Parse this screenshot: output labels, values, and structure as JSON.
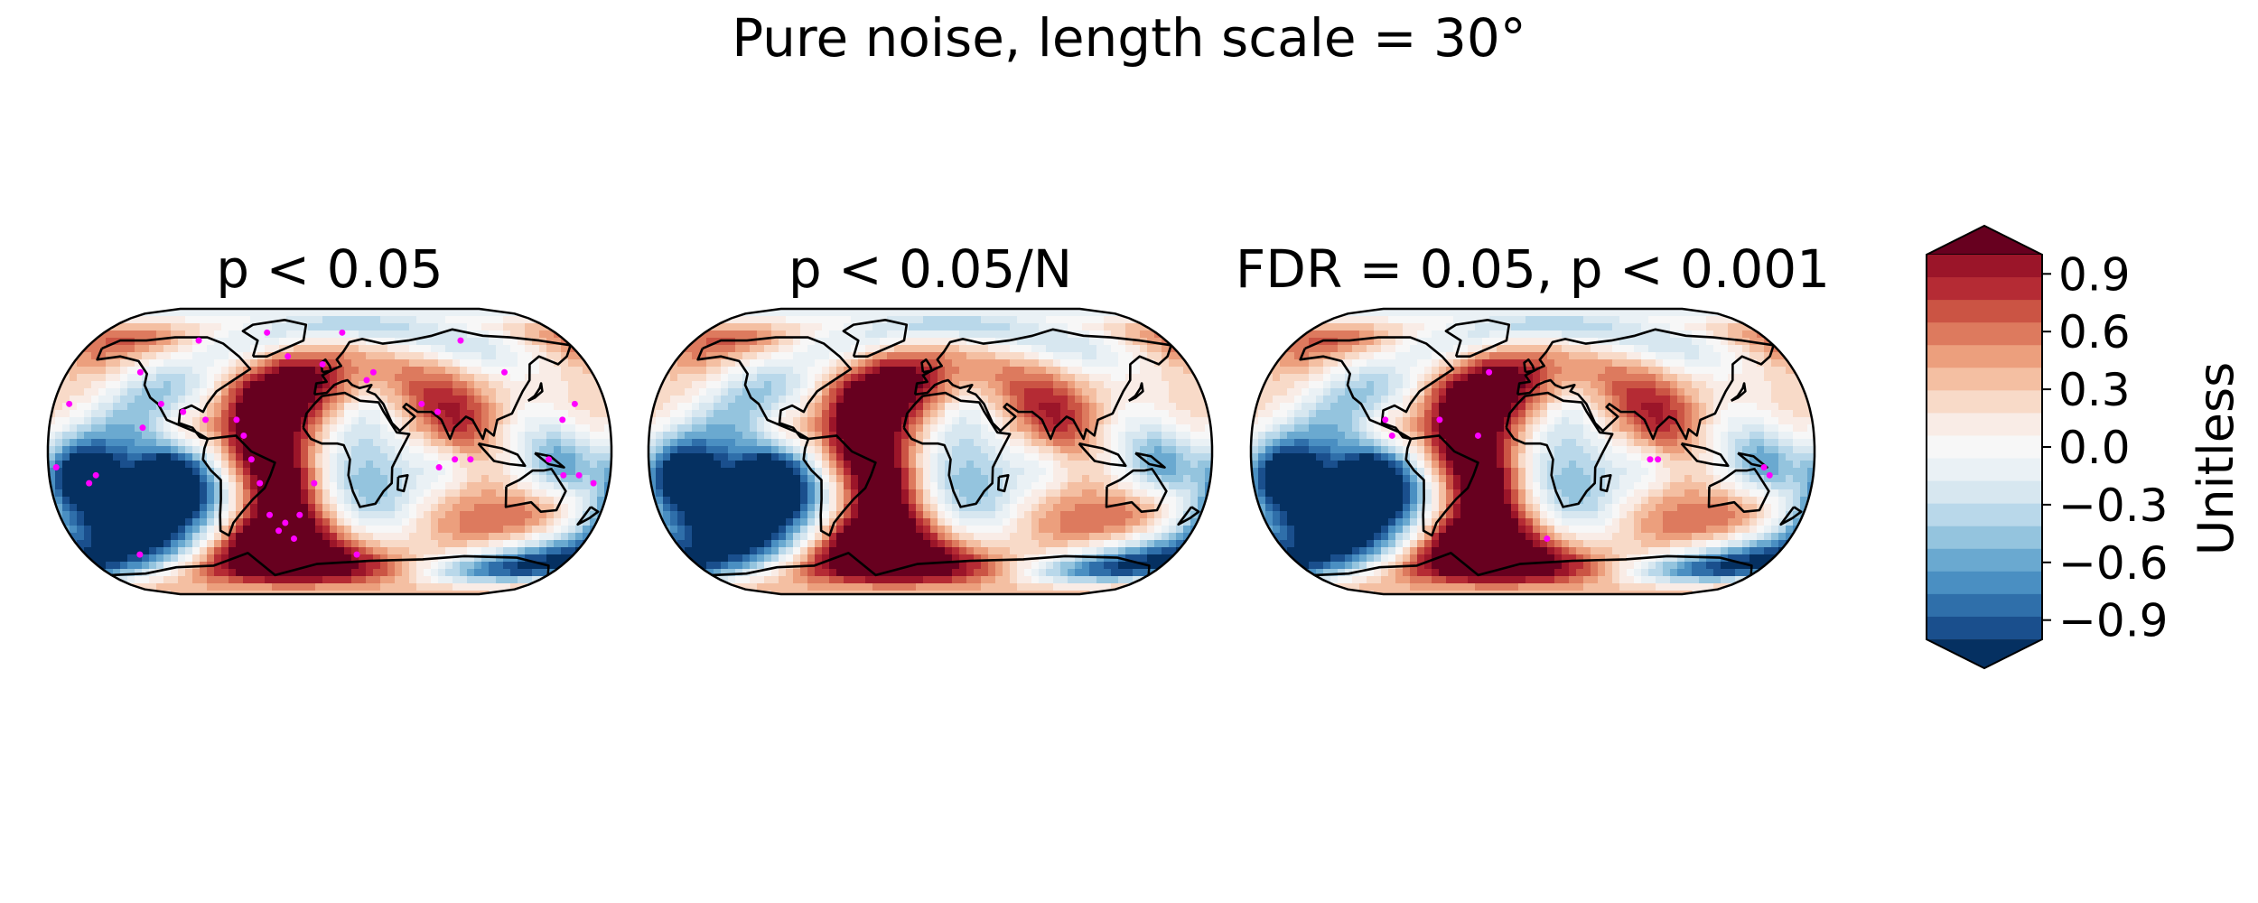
{
  "figure": {
    "title": "Pure noise, length scale = 30°"
  },
  "panels": [
    {
      "title": "p < 0.05",
      "seed": 3,
      "dot_density": "many"
    },
    {
      "title": "p < 0.05/N",
      "seed": 3,
      "dot_density": "none"
    },
    {
      "title": "FDR = 0.05, p < 0.001",
      "seed": 3,
      "dot_density": "few"
    }
  ],
  "colorbar": {
    "label": "Unitless",
    "tick_labels": [
      "0.9",
      "0.6",
      "0.3",
      "0.0",
      "−0.3",
      "−0.6",
      "−0.9"
    ],
    "range": [
      -1.0,
      1.0
    ],
    "extend": "both",
    "colormap": "RdBu_r",
    "colors": [
      "#053061",
      "#1a4f8d",
      "#2f6faa",
      "#4a8fc2",
      "#6aa9d0",
      "#94c4de",
      "#b9d8ea",
      "#d7e7f0",
      "#eaf1f5",
      "#f7f7f7",
      "#f9ece6",
      "#f8dac8",
      "#f4bfa2",
      "#ec9f7d",
      "#dd7a5e",
      "#cb5444",
      "#b52b34",
      "#9b1529",
      "#67001f"
    ]
  },
  "significance_marker": {
    "color": "#ff00ff"
  },
  "map": {
    "projection": "Robinson",
    "coastline_color": "#000000"
  }
}
